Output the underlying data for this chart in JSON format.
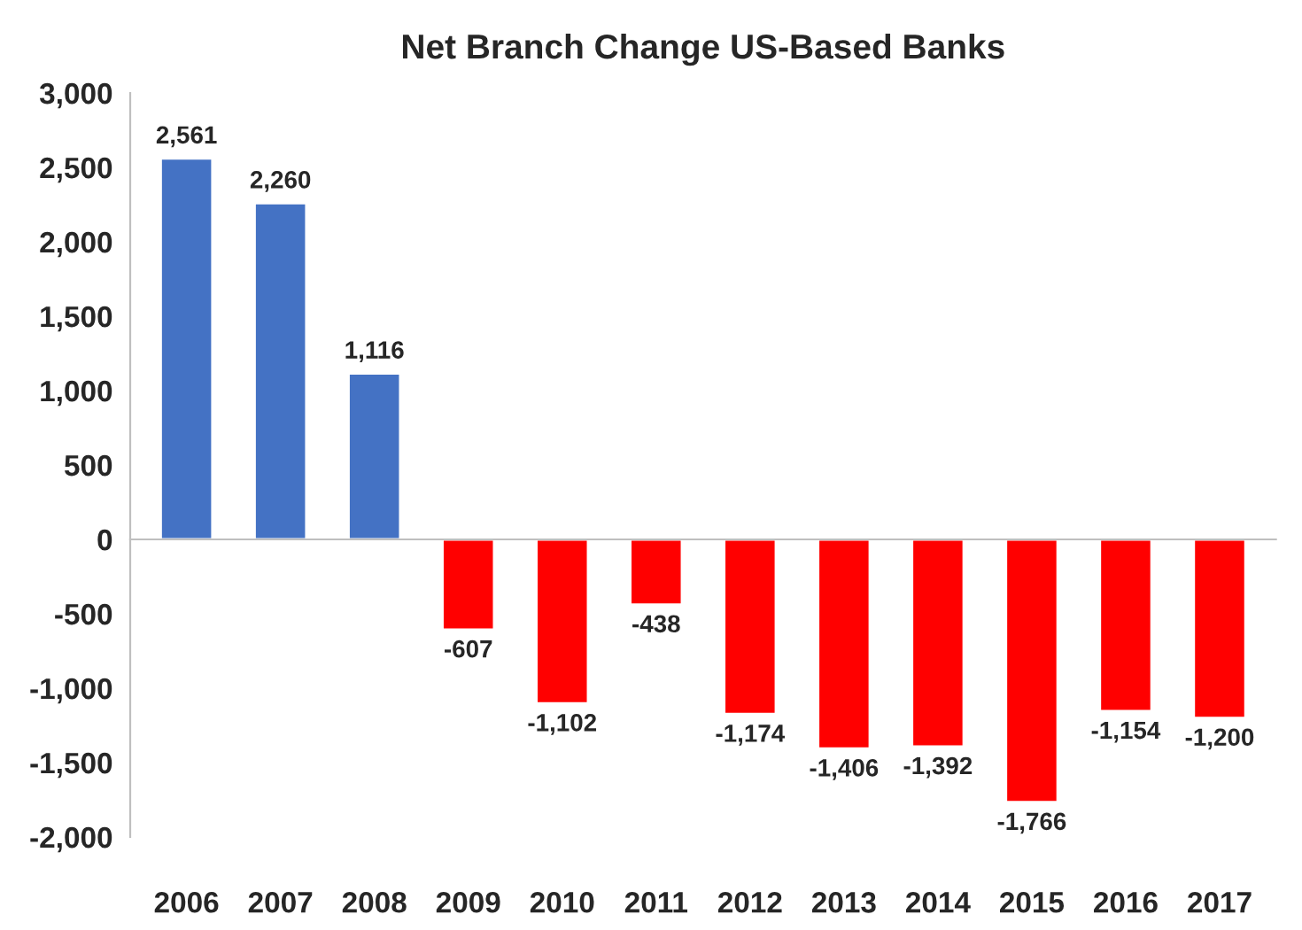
{
  "chart_data": {
    "type": "bar",
    "title": "Net Branch Change US-Based Banks",
    "categories": [
      "2006",
      "2007",
      "2008",
      "2009",
      "2010",
      "2011",
      "2012",
      "2013",
      "2014",
      "2015",
      "2016",
      "2017"
    ],
    "values": [
      2561,
      2260,
      1116,
      -607,
      -1102,
      -438,
      -1174,
      -1406,
      -1392,
      -1766,
      -1154,
      -1200
    ],
    "colors": [
      "#4472c4",
      "#4472c4",
      "#4472c4",
      "#ff0000",
      "#ff0000",
      "#ff0000",
      "#ff0000",
      "#ff0000",
      "#ff0000",
      "#ff0000",
      "#ff0000",
      "#ff0000"
    ],
    "value_labels": [
      "2,561",
      "2,260",
      "1,116",
      "-607",
      "-1,102",
      "-438",
      "-1,174",
      "-1,406",
      "-1,392",
      "-1,766",
      "-1,154",
      "-1,200"
    ],
    "ylim": [
      -2000,
      3000
    ],
    "yticks": [
      {
        "value": -2000,
        "label": "-2,000"
      },
      {
        "value": -1500,
        "label": "-1,500"
      },
      {
        "value": -1000,
        "label": "-1,000"
      },
      {
        "value": -500,
        "label": "-500"
      },
      {
        "value": 0,
        "label": "0"
      },
      {
        "value": 500,
        "label": "500"
      },
      {
        "value": 1000,
        "label": "1,000"
      },
      {
        "value": 1500,
        "label": "1,500"
      },
      {
        "value": 2000,
        "label": "2,000"
      },
      {
        "value": 2500,
        "label": "2,500"
      },
      {
        "value": 3000,
        "label": "3,000"
      }
    ],
    "legend": false
  }
}
